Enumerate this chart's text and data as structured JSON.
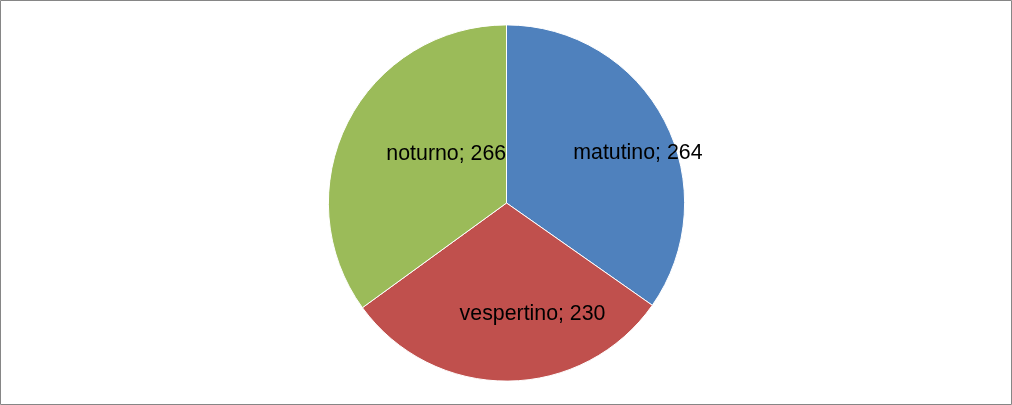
{
  "chart_data": {
    "type": "pie",
    "categories": [
      "matutino",
      "vespertino",
      "noturno"
    ],
    "values": [
      264,
      230,
      266
    ],
    "value_labels": [
      "; 264",
      "; 230",
      "; 266"
    ],
    "colors": [
      "#4f81bd",
      "#c0504d",
      "#9bbb59"
    ]
  }
}
